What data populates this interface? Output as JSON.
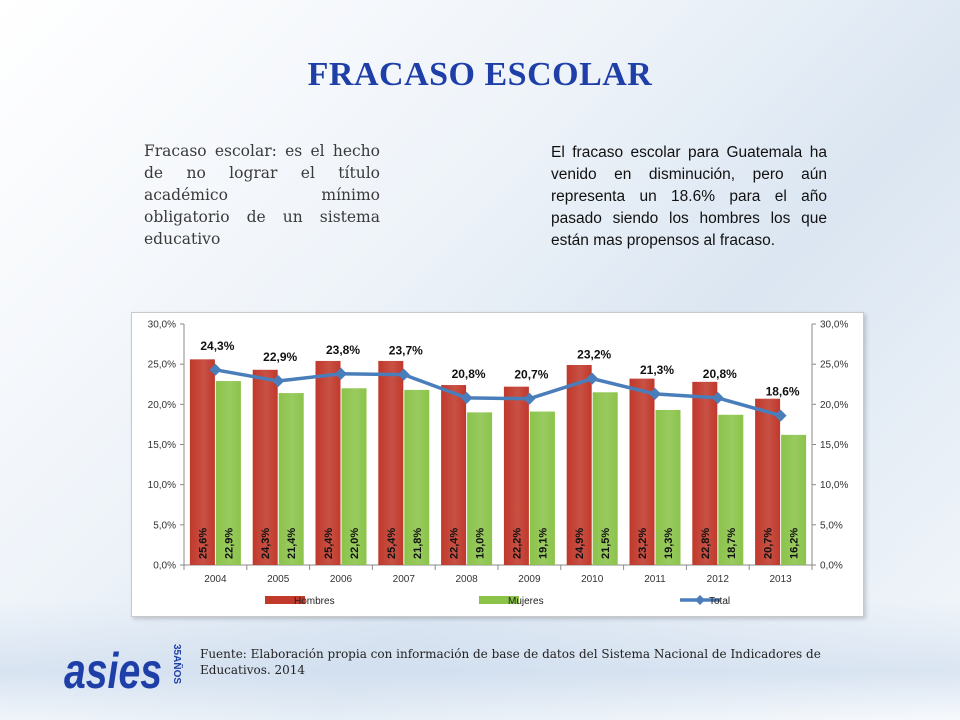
{
  "slide": {
    "title": "FRACASO ESCOLAR",
    "definition": "Fracaso escolar: es el hecho de no lograr el título académico mínimo obligatorio de un sistema educativo",
    "description": "El fracaso escolar para Guatemala ha venido en disminución, pero aún representa un 18.6% para el año pasado siendo los hombres los que están mas propensos al fracaso.",
    "source": "Fuente: Elaboración propia con información de base de datos del Sistema Nacional de Indicadores de Educativos. 2014",
    "logo": {
      "text": "asies",
      "badge": "35AÑOS",
      "color": "#1f3fa8"
    }
  },
  "chart_data": {
    "type": "bar",
    "categories": [
      "2004",
      "2005",
      "2006",
      "2007",
      "2008",
      "2009",
      "2010",
      "2011",
      "2012",
      "2013"
    ],
    "series": [
      {
        "name": "Hombres",
        "type": "bar",
        "color": "#c0392b",
        "values": [
          25.6,
          24.3,
          25.4,
          25.4,
          22.4,
          22.2,
          24.9,
          23.2,
          22.8,
          20.7
        ],
        "labels": [
          "25,6%",
          "24,3%",
          "25,4%",
          "25,4%",
          "22,4%",
          "22,2%",
          "24,9%",
          "23,2%",
          "22,8%",
          "20,7%"
        ]
      },
      {
        "name": "Mujeres",
        "type": "bar",
        "color": "#8bc34a",
        "values": [
          22.9,
          21.4,
          22.0,
          21.8,
          19.0,
          19.1,
          21.5,
          19.3,
          18.7,
          16.2
        ],
        "labels": [
          "22,9%",
          "21,4%",
          "22,0%",
          "21,8%",
          "19,0%",
          "19,1%",
          "21,5%",
          "19,3%",
          "18,7%",
          "16,2%"
        ]
      },
      {
        "name": "Total",
        "type": "line",
        "color": "#4a7ebb",
        "values": [
          24.3,
          22.9,
          23.8,
          23.7,
          20.8,
          20.7,
          23.2,
          21.3,
          20.8,
          18.6
        ],
        "labels": [
          "24,3%",
          "22,9%",
          "23,8%",
          "23,7%",
          "20,8%",
          "20,7%",
          "23,2%",
          "21,3%",
          "20,8%",
          "18,6%"
        ]
      }
    ],
    "ylim": [
      0,
      30
    ],
    "yticks": [
      "0,0%",
      "5,0%",
      "10,0%",
      "15,0%",
      "20,0%",
      "25,0%",
      "30,0%"
    ],
    "grid": false,
    "legend": "bottom",
    "secondary_axis": true
  }
}
